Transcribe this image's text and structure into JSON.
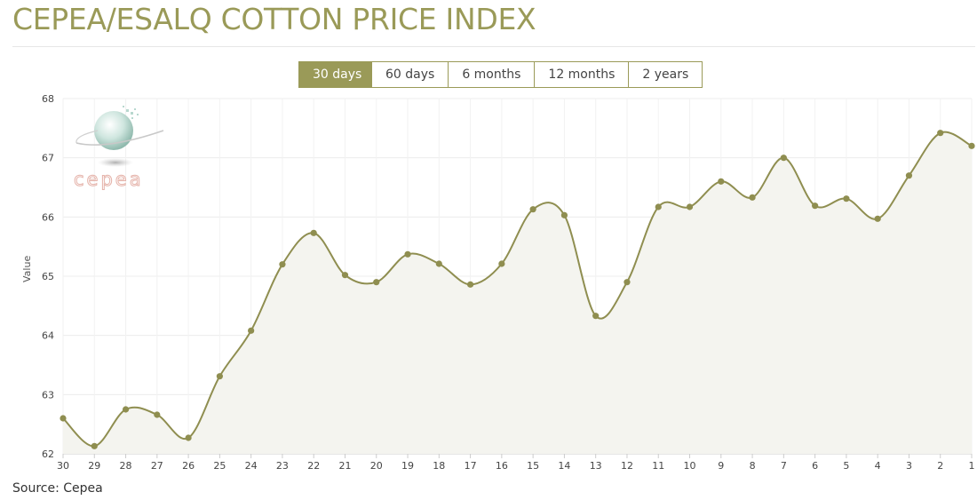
{
  "header": {
    "title": "CEPEA/ESALQ COTTON PRICE INDEX"
  },
  "range_tabs": [
    {
      "label": "30 days",
      "active": true
    },
    {
      "label": "60 days",
      "active": false
    },
    {
      "label": "6 months",
      "active": false
    },
    {
      "label": "12 months",
      "active": false
    },
    {
      "label": "2 years",
      "active": false
    }
  ],
  "logo": {
    "text": "cepea"
  },
  "footer": {
    "source": "Source: Cepea"
  },
  "colors": {
    "accent": "#9a9a58",
    "line": "#8f8e50",
    "area": "#f4f4ef",
    "grid": "#ececec"
  },
  "chart_data": {
    "type": "area",
    "ylabel": "Value",
    "ylim": [
      62,
      68
    ],
    "yticks": [
      62,
      63,
      64,
      65,
      66,
      67,
      68
    ],
    "grid": true,
    "x": [
      "30",
      "29",
      "28",
      "27",
      "26",
      "25",
      "24",
      "23",
      "22",
      "21",
      "20",
      "19",
      "18",
      "17",
      "16",
      "15",
      "14",
      "13",
      "12",
      "11",
      "10",
      "9",
      "8",
      "7",
      "6",
      "5",
      "4",
      "3",
      "2",
      "1"
    ],
    "series": [
      {
        "values": [
          62.6,
          62.13,
          62.75,
          62.66,
          62.27,
          63.31,
          64.08,
          65.2,
          65.73,
          65.02,
          64.9,
          65.37,
          65.21,
          64.86,
          65.21,
          66.13,
          66.03,
          64.33,
          64.9,
          66.17,
          66.17,
          66.6,
          66.33,
          67.0,
          66.19,
          66.31,
          65.97,
          66.7,
          67.42,
          67.2
        ]
      }
    ]
  }
}
